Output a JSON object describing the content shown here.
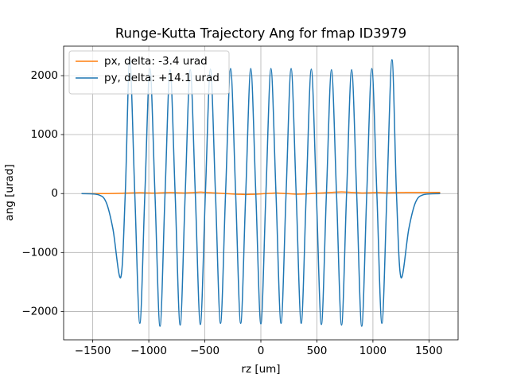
{
  "chart_data": {
    "type": "line",
    "title": "Runge-Kutta Trajectory Ang for fmap ID3979",
    "xlabel": "rz [um]",
    "ylabel": "ang [urad]",
    "x": [
      -1600,
      -1450,
      -1380,
      -1320,
      -1250,
      -1210,
      -1170,
      -1125,
      -1080,
      -1035,
      -990,
      -945,
      -900,
      -855,
      -810,
      -765,
      -720,
      -675,
      -630,
      -585,
      -540,
      -495,
      -450,
      -405,
      -360,
      -315,
      -270,
      -225,
      -180,
      -135,
      -90,
      -45,
      0,
      45,
      90,
      135,
      180,
      225,
      270,
      315,
      360,
      405,
      450,
      495,
      540,
      585,
      630,
      675,
      720,
      765,
      810,
      855,
      900,
      945,
      990,
      1035,
      1080,
      1125,
      1170,
      1210,
      1250,
      1320,
      1380,
      1450,
      1600
    ],
    "series": [
      {
        "name": "px, delta: -3.4 urad",
        "color": "#ff7f0e",
        "values": [
          0,
          0,
          0,
          2,
          5,
          8,
          10,
          12,
          15,
          12,
          10,
          8,
          12,
          15,
          18,
          15,
          12,
          10,
          15,
          20,
          25,
          20,
          15,
          10,
          5,
          0,
          -5,
          -10,
          -12,
          -15,
          -12,
          -10,
          -5,
          0,
          5,
          10,
          5,
          0,
          -5,
          -10,
          -8,
          -5,
          0,
          5,
          10,
          15,
          20,
          25,
          28,
          25,
          20,
          15,
          10,
          12,
          15,
          18,
          15,
          12,
          15,
          15,
          18,
          20,
          20,
          20,
          20
        ]
      },
      {
        "name": "py, delta: +14.1 urad",
        "color": "#1f77b4",
        "values": [
          0,
          -20,
          -150,
          -600,
          -1420,
          0,
          2270,
          0,
          -2200,
          0,
          2120,
          0,
          -2250,
          0,
          2100,
          0,
          -2230,
          0,
          2100,
          0,
          -2220,
          0,
          2110,
          0,
          -2200,
          0,
          2120,
          0,
          -2200,
          0,
          2120,
          0,
          -2210,
          0,
          2120,
          0,
          -2200,
          0,
          2120,
          0,
          -2200,
          0,
          2110,
          0,
          -2220,
          0,
          2100,
          0,
          -2230,
          0,
          2100,
          0,
          -2250,
          0,
          2120,
          0,
          -2200,
          0,
          2270,
          0,
          -1420,
          -600,
          -150,
          -20,
          0
        ]
      }
    ],
    "xlim": [
      -1760,
      1760
    ],
    "ylim": [
      -2480,
      2500
    ],
    "xticks": [
      {
        "value": -1500,
        "label": "−1500"
      },
      {
        "value": -1000,
        "label": "−1000"
      },
      {
        "value": -500,
        "label": "−500"
      },
      0,
      500,
      1000,
      1500
    ],
    "yticks": [
      {
        "value": -2000,
        "label": "−2000"
      },
      {
        "value": -1000,
        "label": "−1000"
      },
      0,
      1000,
      2000
    ],
    "grid": true,
    "legend": "upper left"
  }
}
